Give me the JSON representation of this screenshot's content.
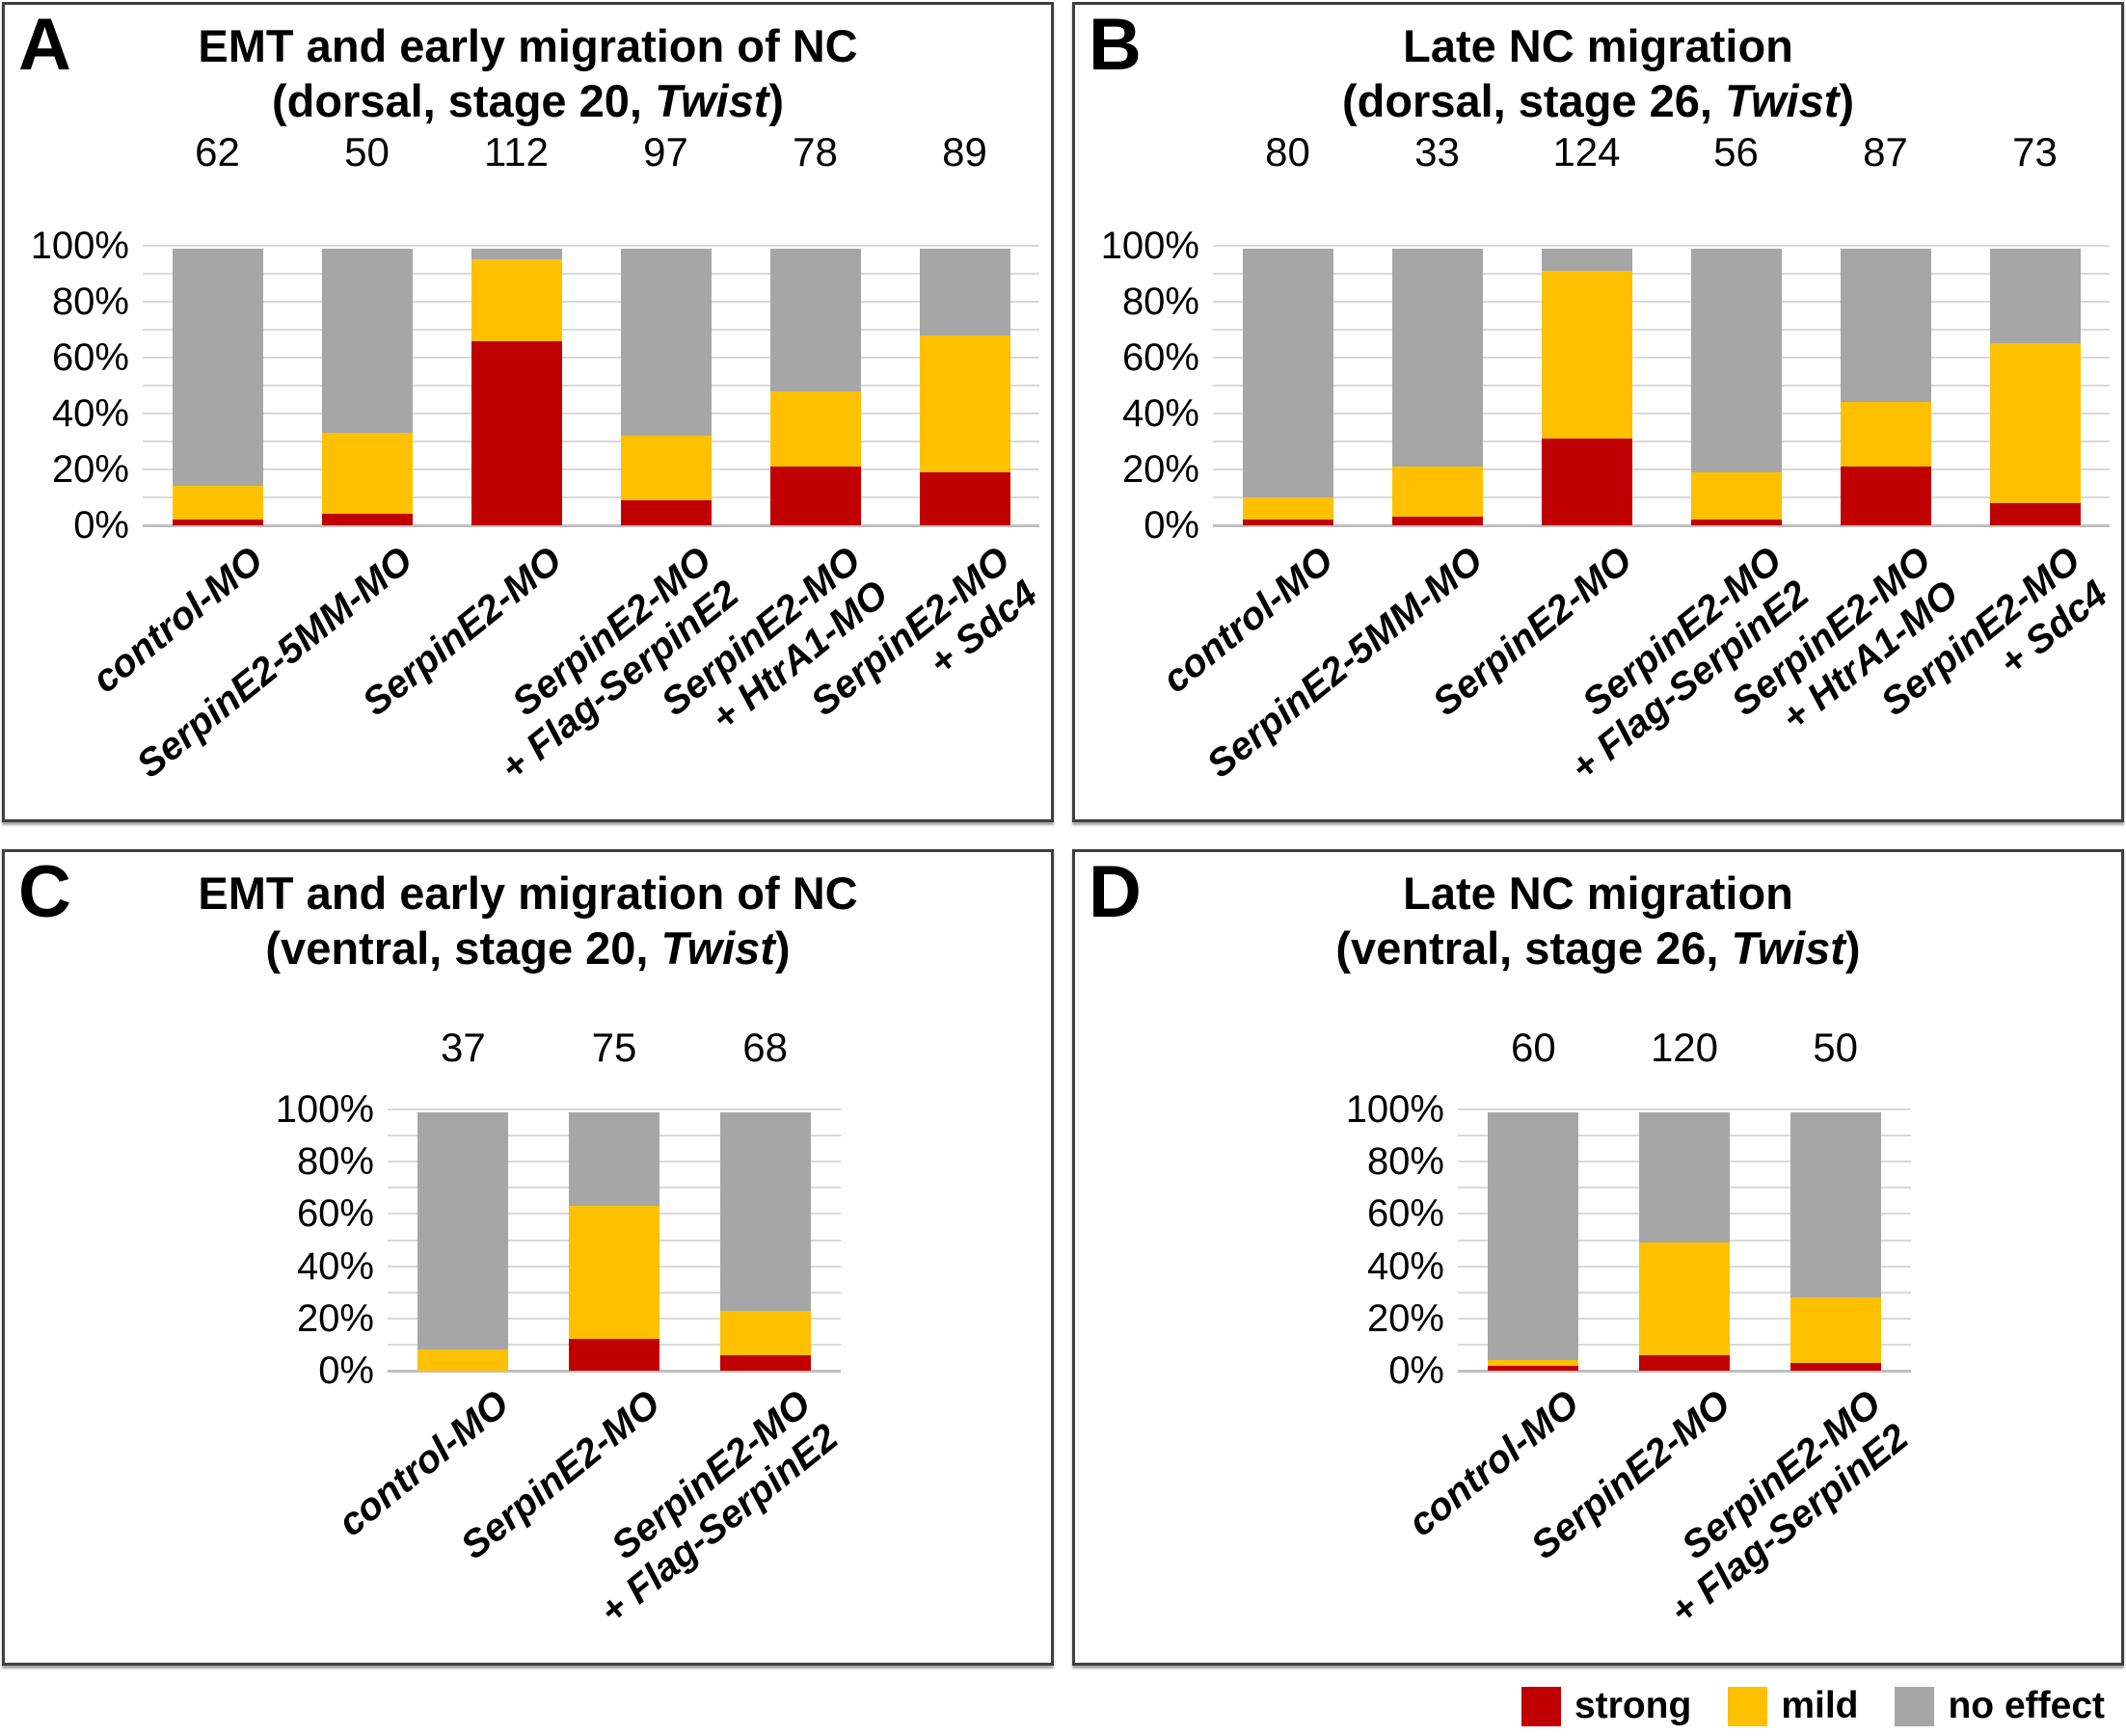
{
  "figure": {
    "background": "#ffffff",
    "colors": {
      "strong": "#c00000",
      "mild": "#ffc000",
      "no_effect": "#a6a6a6",
      "gridline": "#d9d9d9",
      "border": "#3f3f3f"
    }
  },
  "legend": {
    "items": [
      {
        "label": "strong",
        "color": "#c00000"
      },
      {
        "label": "mild",
        "color": "#ffc000"
      },
      {
        "label": "no effect",
        "color": "#a6a6a6"
      }
    ]
  },
  "chart_data": [
    {
      "type": "bar",
      "stacked": true,
      "panel_letter": "A",
      "title": "EMT and early migration of NC",
      "subtitle_prefix": "(dorsal, stage 20, ",
      "subtitle_italic": "Twist",
      "subtitle_suffix": ")",
      "ylabel": "",
      "ylim": [
        0,
        100
      ],
      "ytick_labels": [
        "100%",
        "80%",
        "60%",
        "40%",
        "20%",
        "0%"
      ],
      "grid": true,
      "legend_position": "bottom-right-of-figure",
      "categories": [
        [
          "control-MO"
        ],
        [
          "SerpinE2-5MM-MO"
        ],
        [
          "SerpinE2-MO"
        ],
        [
          "SerpinE2-MO",
          "+ Flag-SerpinE2"
        ],
        [
          "SerpinE2-MO",
          "+ HtrA1-MO"
        ],
        [
          "SerpinE2-MO",
          "+ Sdc4"
        ]
      ],
      "n_values": [
        62,
        50,
        112,
        97,
        78,
        89
      ],
      "series": [
        {
          "name": "strong",
          "color": "#c00000",
          "values": [
            2,
            4,
            66,
            9,
            21,
            19
          ]
        },
        {
          "name": "mild",
          "color": "#ffc000",
          "values": [
            12,
            29,
            29,
            23,
            27,
            49
          ]
        },
        {
          "name": "no effect",
          "color": "#a6a6a6",
          "values": [
            86,
            67,
            5,
            68,
            52,
            32
          ]
        }
      ]
    },
    {
      "type": "bar",
      "stacked": true,
      "panel_letter": "B",
      "title": "Late NC migration",
      "subtitle_prefix": "(dorsal, stage 26, ",
      "subtitle_italic": "Twist",
      "subtitle_suffix": ")",
      "ylabel": "",
      "ylim": [
        0,
        100
      ],
      "ytick_labels": [
        "100%",
        "80%",
        "60%",
        "40%",
        "20%",
        "0%"
      ],
      "grid": true,
      "categories": [
        [
          "control-MO"
        ],
        [
          "SerpinE2-5MM-MO"
        ],
        [
          "SerpinE2-MO"
        ],
        [
          "SerpinE2-MO",
          "+ Flag-SerpinE2"
        ],
        [
          "SerpinE2-MO",
          "+ HtrA1-MO"
        ],
        [
          "SerpinE2-MO",
          "+ Sdc4"
        ]
      ],
      "n_values": [
        80,
        33,
        124,
        56,
        87,
        73
      ],
      "series": [
        {
          "name": "strong",
          "color": "#c00000",
          "values": [
            2,
            3,
            31,
            2,
            21,
            8
          ]
        },
        {
          "name": "mild",
          "color": "#ffc000",
          "values": [
            8,
            18,
            60,
            17,
            23,
            57
          ]
        },
        {
          "name": "no effect",
          "color": "#a6a6a6",
          "values": [
            90,
            79,
            9,
            81,
            56,
            35
          ]
        }
      ]
    },
    {
      "type": "bar",
      "stacked": true,
      "panel_letter": "C",
      "title": "EMT and early migration of NC",
      "subtitle_prefix": "(ventral, stage 20, ",
      "subtitle_italic": "Twist",
      "subtitle_suffix": ")",
      "ylabel": "",
      "ylim": [
        0,
        100
      ],
      "ytick_labels": [
        "100%",
        "80%",
        "60%",
        "40%",
        "20%",
        "0%"
      ],
      "grid": true,
      "categories": [
        [
          "control-MO"
        ],
        [
          "SerpinE2-MO"
        ],
        [
          "SerpinE2-MO",
          "+ Flag-SerpinE2"
        ]
      ],
      "n_values": [
        37,
        75,
        68
      ],
      "series": [
        {
          "name": "strong",
          "color": "#c00000",
          "values": [
            0,
            12,
            6
          ]
        },
        {
          "name": "mild",
          "color": "#ffc000",
          "values": [
            8,
            51,
            17
          ]
        },
        {
          "name": "no effect",
          "color": "#a6a6a6",
          "values": [
            92,
            37,
            77
          ]
        }
      ]
    },
    {
      "type": "bar",
      "stacked": true,
      "panel_letter": "D",
      "title": "Late NC migration",
      "subtitle_prefix": "(ventral, stage 26, ",
      "subtitle_italic": "Twist",
      "subtitle_suffix": ")",
      "ylabel": "",
      "ylim": [
        0,
        100
      ],
      "ytick_labels": [
        "100%",
        "80%",
        "60%",
        "40%",
        "20%",
        "0%"
      ],
      "grid": true,
      "categories": [
        [
          "control-MO"
        ],
        [
          "SerpinE2-MO"
        ],
        [
          "SerpinE2-MO",
          "+ Flag-SerpinE2"
        ]
      ],
      "n_values": [
        60,
        120,
        50
      ],
      "series": [
        {
          "name": "strong",
          "color": "#c00000",
          "values": [
            2,
            6,
            3
          ]
        },
        {
          "name": "mild",
          "color": "#ffc000",
          "values": [
            2,
            43,
            25
          ]
        },
        {
          "name": "no effect",
          "color": "#a6a6a6",
          "values": [
            96,
            51,
            72
          ]
        }
      ]
    }
  ]
}
